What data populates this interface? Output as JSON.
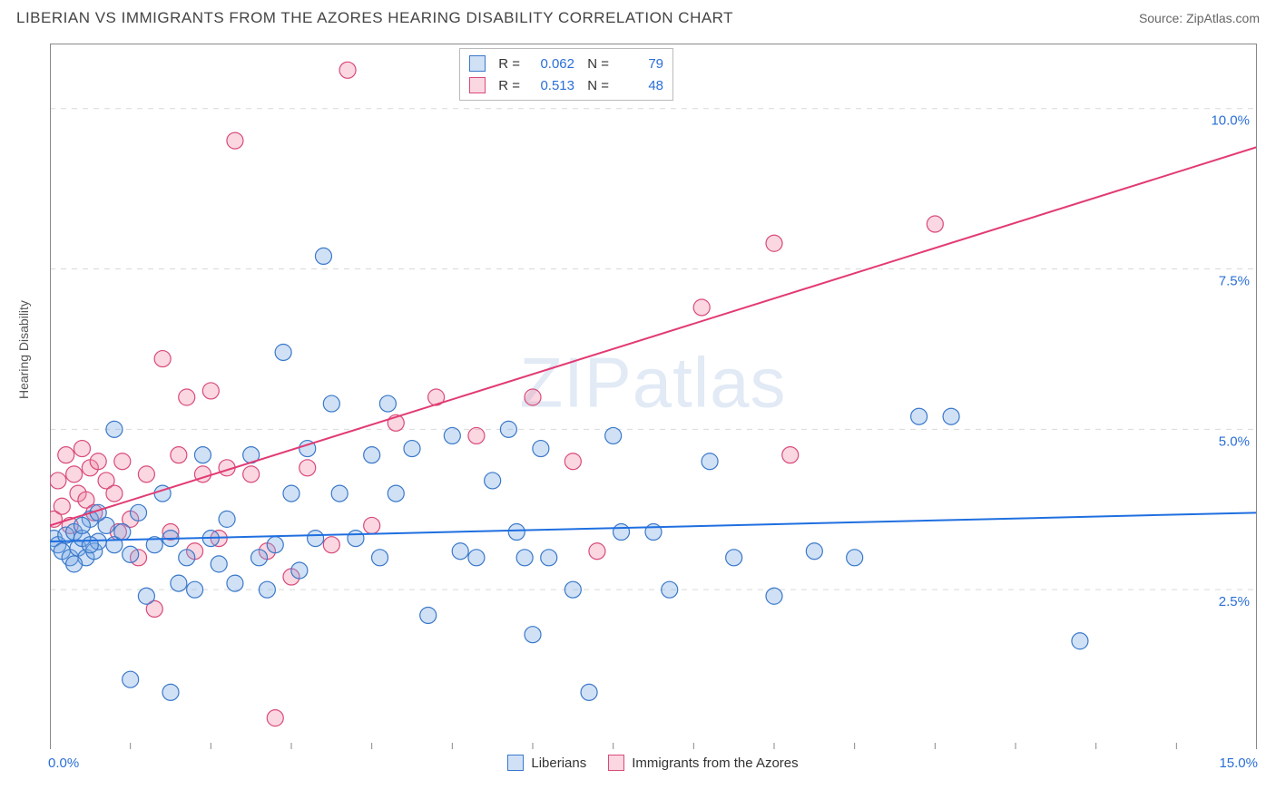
{
  "header": {
    "title": "LIBERIAN VS IMMIGRANTS FROM THE AZORES HEARING DISABILITY CORRELATION CHART",
    "source_prefix": "Source: ",
    "source_name": "ZipAtlas.com"
  },
  "axes": {
    "y_label": "Hearing Disability",
    "x_min": 0.0,
    "x_max": 15.0,
    "y_min": 0.0,
    "y_max": 11.0,
    "x_tick_min_label": "0.0%",
    "x_tick_max_label": "15.0%",
    "y_grid": [
      {
        "v": 2.5,
        "label": "2.5%"
      },
      {
        "v": 5.0,
        "label": "5.0%"
      },
      {
        "v": 7.5,
        "label": "7.5%"
      },
      {
        "v": 10.0,
        "label": "10.0%"
      }
    ],
    "x_ticks_minor": [
      0,
      1,
      2,
      3,
      4,
      5,
      6,
      7,
      8,
      9,
      10,
      11,
      12,
      13,
      14,
      15
    ],
    "grid_color": "#d9d9d9",
    "grid_dash": "6 6",
    "axis_color": "#888888",
    "y_tick_label_color": "#2a6fd6",
    "y_tick_label_fontsize": 15
  },
  "watermark": {
    "text_a": "ZIP",
    "text_b": "atlas"
  },
  "series": {
    "blue": {
      "label": "Liberians",
      "R": "0.062",
      "N": "79",
      "color_fill": "rgba(120,170,230,0.35)",
      "color_stroke": "#3a78c9",
      "marker_r": 9,
      "trend": {
        "x1": 0.0,
        "y1": 3.25,
        "x2": 15.0,
        "y2": 3.7,
        "color": "#1f6fe0",
        "width": 2
      },
      "points": [
        [
          0.05,
          3.3
        ],
        [
          0.1,
          3.2
        ],
        [
          0.15,
          3.1
        ],
        [
          0.2,
          3.35
        ],
        [
          0.25,
          3.0
        ],
        [
          0.3,
          3.4
        ],
        [
          0.35,
          3.15
        ],
        [
          0.4,
          3.3
        ],
        [
          0.45,
          3.0
        ],
        [
          0.5,
          3.6
        ],
        [
          0.55,
          3.1
        ],
        [
          0.6,
          3.25
        ],
        [
          0.7,
          3.5
        ],
        [
          0.8,
          3.2
        ],
        [
          0.9,
          3.4
        ],
        [
          1.0,
          3.05
        ],
        [
          0.6,
          3.7
        ],
        [
          0.8,
          5.0
        ],
        [
          1.0,
          1.1
        ],
        [
          1.1,
          3.7
        ],
        [
          1.2,
          2.4
        ],
        [
          1.3,
          3.2
        ],
        [
          1.4,
          4.0
        ],
        [
          1.5,
          3.3
        ],
        [
          1.5,
          0.9
        ],
        [
          1.6,
          2.6
        ],
        [
          1.7,
          3.0
        ],
        [
          1.8,
          2.5
        ],
        [
          1.9,
          4.6
        ],
        [
          2.0,
          3.3
        ],
        [
          2.1,
          2.9
        ],
        [
          2.2,
          3.6
        ],
        [
          2.3,
          2.6
        ],
        [
          2.5,
          4.6
        ],
        [
          2.6,
          3.0
        ],
        [
          2.7,
          2.5
        ],
        [
          2.8,
          3.2
        ],
        [
          2.9,
          6.2
        ],
        [
          3.0,
          4.0
        ],
        [
          3.1,
          2.8
        ],
        [
          3.2,
          4.7
        ],
        [
          3.3,
          3.3
        ],
        [
          3.4,
          7.7
        ],
        [
          3.5,
          5.4
        ],
        [
          3.6,
          4.0
        ],
        [
          3.8,
          3.3
        ],
        [
          4.0,
          4.6
        ],
        [
          4.1,
          3.0
        ],
        [
          4.2,
          5.4
        ],
        [
          4.3,
          4.0
        ],
        [
          4.5,
          4.7
        ],
        [
          4.7,
          2.1
        ],
        [
          5.0,
          4.9
        ],
        [
          5.1,
          3.1
        ],
        [
          5.3,
          3.0
        ],
        [
          5.5,
          4.2
        ],
        [
          5.7,
          5.0
        ],
        [
          5.8,
          3.4
        ],
        [
          5.9,
          3.0
        ],
        [
          6.0,
          1.8
        ],
        [
          6.1,
          4.7
        ],
        [
          6.2,
          3.0
        ],
        [
          6.5,
          2.5
        ],
        [
          6.7,
          0.9
        ],
        [
          7.0,
          4.9
        ],
        [
          7.1,
          3.4
        ],
        [
          7.5,
          3.4
        ],
        [
          7.7,
          2.5
        ],
        [
          8.2,
          4.5
        ],
        [
          8.5,
          3.0
        ],
        [
          9.0,
          2.4
        ],
        [
          9.5,
          3.1
        ],
        [
          10.0,
          3.0
        ],
        [
          10.8,
          5.2
        ],
        [
          11.2,
          5.2
        ],
        [
          12.8,
          1.7
        ],
        [
          0.3,
          2.9
        ],
        [
          0.4,
          3.5
        ],
        [
          0.5,
          3.2
        ]
      ]
    },
    "pink": {
      "label": "Immigrants from the Azores",
      "R": "0.513",
      "N": "48",
      "color_fill": "rgba(240,140,170,0.35)",
      "color_stroke": "#d94a7a",
      "marker_r": 9,
      "trend": {
        "x1": 0.0,
        "y1": 3.5,
        "x2": 15.0,
        "y2": 9.4,
        "color": "#e23a72",
        "width": 2
      },
      "points": [
        [
          0.05,
          3.6
        ],
        [
          0.1,
          4.2
        ],
        [
          0.15,
          3.8
        ],
        [
          0.2,
          4.6
        ],
        [
          0.25,
          3.5
        ],
        [
          0.3,
          4.3
        ],
        [
          0.35,
          4.0
        ],
        [
          0.4,
          4.7
        ],
        [
          0.45,
          3.9
        ],
        [
          0.5,
          4.4
        ],
        [
          0.55,
          3.7
        ],
        [
          0.6,
          4.5
        ],
        [
          0.7,
          4.2
        ],
        [
          0.8,
          4.0
        ],
        [
          0.85,
          3.4
        ],
        [
          0.9,
          4.5
        ],
        [
          1.0,
          3.6
        ],
        [
          1.1,
          3.0
        ],
        [
          1.2,
          4.3
        ],
        [
          1.3,
          2.2
        ],
        [
          1.4,
          6.1
        ],
        [
          1.5,
          3.4
        ],
        [
          1.6,
          4.6
        ],
        [
          1.7,
          5.5
        ],
        [
          1.8,
          3.1
        ],
        [
          1.9,
          4.3
        ],
        [
          2.0,
          5.6
        ],
        [
          2.1,
          3.3
        ],
        [
          2.2,
          4.4
        ],
        [
          2.3,
          9.5
        ],
        [
          2.5,
          4.3
        ],
        [
          2.7,
          3.1
        ],
        [
          2.8,
          0.5
        ],
        [
          3.0,
          2.7
        ],
        [
          3.2,
          4.4
        ],
        [
          3.5,
          3.2
        ],
        [
          3.7,
          10.6
        ],
        [
          4.0,
          3.5
        ],
        [
          4.3,
          5.1
        ],
        [
          4.8,
          5.5
        ],
        [
          5.3,
          4.9
        ],
        [
          6.0,
          5.5
        ],
        [
          6.5,
          4.5
        ],
        [
          8.1,
          6.9
        ],
        [
          9.0,
          7.9
        ],
        [
          9.2,
          4.6
        ],
        [
          11.0,
          8.2
        ],
        [
          6.8,
          3.1
        ]
      ]
    }
  },
  "stats_box": {
    "rows": [
      {
        "swatch": "blue",
        "R_label": "R =",
        "R": "0.062",
        "N_label": "N =",
        "N": "79"
      },
      {
        "swatch": "pink",
        "R_label": "R =",
        "R": "0.513",
        "N_label": "N =",
        "N": "48"
      }
    ]
  },
  "bottom_legend": {
    "items": [
      {
        "swatch": "blue",
        "label": "Liberians"
      },
      {
        "swatch": "pink",
        "label": "Immigrants from the Azores"
      }
    ]
  }
}
